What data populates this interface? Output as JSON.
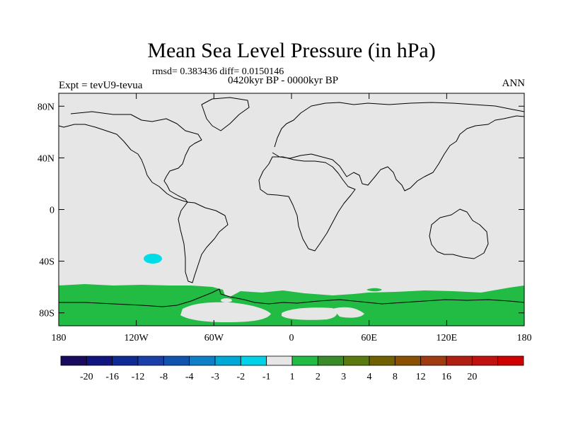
{
  "title": "Mean Sea Level Pressure (in hPa)",
  "stats": "rmsd= 0.383436 diff= 0.0150146",
  "period": "0420kyr BP - 0000kyr BP",
  "experiment": "Expt = tevU9-tevua",
  "season": "ANN",
  "map": {
    "projection": "cylindrical-equidistant",
    "lon_range": [
      -180,
      180
    ],
    "lat_range": [
      -90,
      90
    ],
    "lon_ticks": [
      {
        "value": -180,
        "label": "180"
      },
      {
        "value": -120,
        "label": "120W"
      },
      {
        "value": -60,
        "label": "60W"
      },
      {
        "value": 0,
        "label": "0"
      },
      {
        "value": 60,
        "label": "60E"
      },
      {
        "value": 120,
        "label": "120E"
      },
      {
        "value": 180,
        "label": "180"
      }
    ],
    "lat_ticks": [
      {
        "value": 80,
        "label": "80N"
      },
      {
        "value": 40,
        "label": "40N"
      },
      {
        "value": 0,
        "label": "0"
      },
      {
        "value": -40,
        "label": "40S"
      },
      {
        "value": -80,
        "label": "80S"
      }
    ],
    "background_color": "#e6e6e6",
    "field_colors": {
      "positive_1_2": "#22bb44",
      "negative_1_2": "#00dde8"
    }
  },
  "colorbar": {
    "colors": [
      "#1a0a5e",
      "#101580",
      "#0f2a94",
      "#1a3fa8",
      "#0f55b0",
      "#0f80c8",
      "#00a8d8",
      "#00d0e8",
      "#e6e6e6",
      "#22bb44",
      "#3a8a2a",
      "#5a7a10",
      "#706000",
      "#885000",
      "#a03a10",
      "#b02010",
      "#c01010",
      "#d00000"
    ],
    "labels": [
      "-20",
      "-16",
      "-12",
      "-8",
      "-4",
      "-3",
      "-2",
      "-1",
      "1",
      "2",
      "3",
      "4",
      "8",
      "12",
      "16",
      "20"
    ]
  }
}
